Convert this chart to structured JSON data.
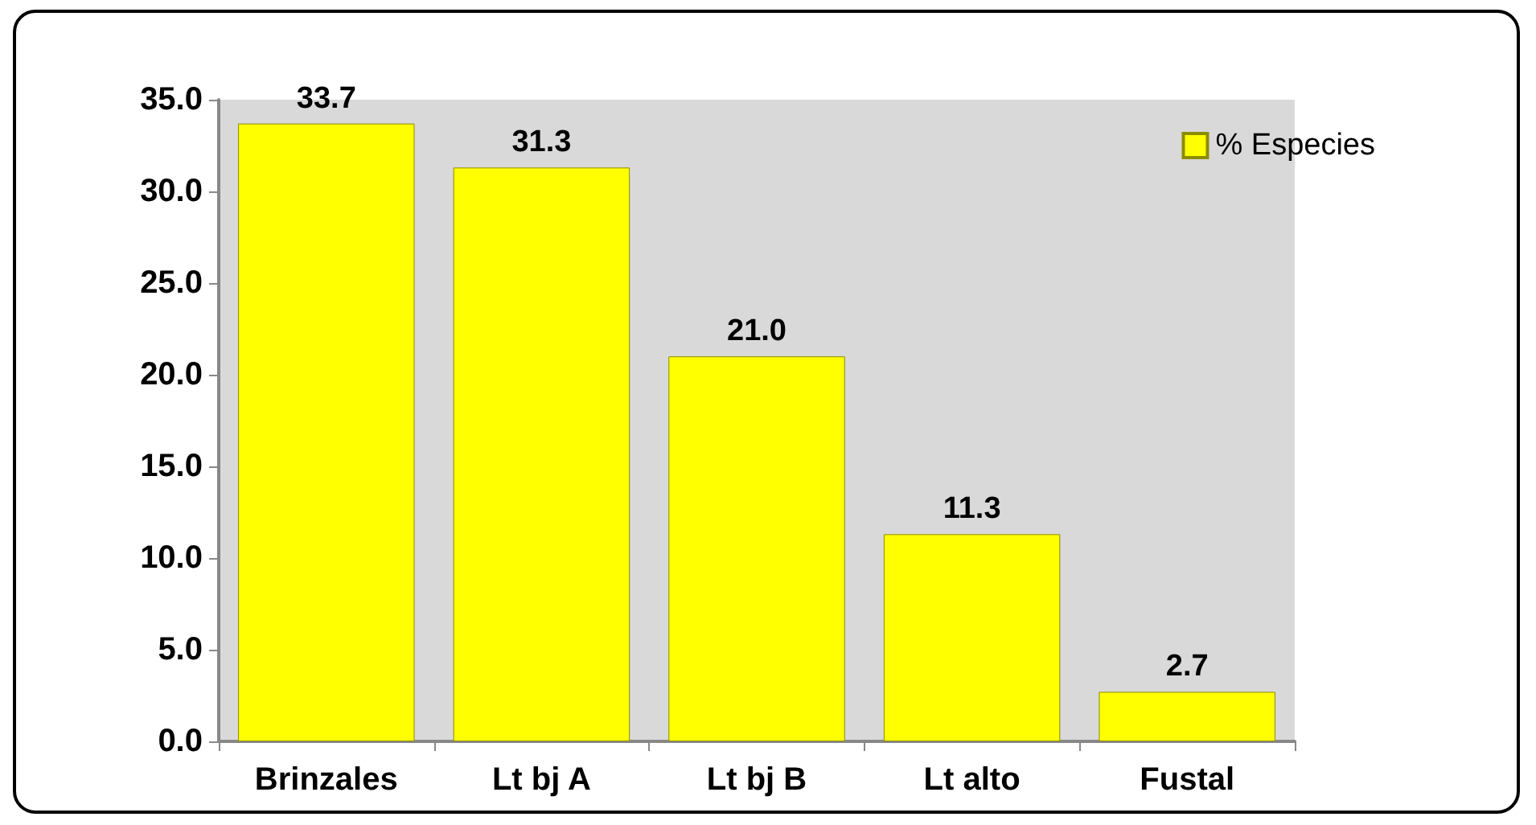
{
  "chart_data": {
    "type": "bar",
    "categories": [
      "Brinzales",
      "Lt bj A",
      "Lt bj B",
      "Lt alto",
      "Fustal"
    ],
    "series": [
      {
        "name": "% Especies",
        "color": "#ffff00",
        "values": [
          33.7,
          31.3,
          21.0,
          11.3,
          2.7
        ],
        "value_labels": [
          "33.7",
          "31.3",
          "21.0",
          "11.3",
          "2.7"
        ]
      }
    ],
    "ylim": [
      0,
      35
    ],
    "yticks": [
      {
        "value": 0,
        "label": "0.0"
      },
      {
        "value": 5,
        "label": "5.0"
      },
      {
        "value": 10,
        "label": "10.0"
      },
      {
        "value": 15,
        "label": "15.0"
      },
      {
        "value": 20,
        "label": "20.0"
      },
      {
        "value": 25,
        "label": "25.0"
      },
      {
        "value": 30,
        "label": "30.0"
      },
      {
        "value": 35,
        "label": "35.0"
      }
    ],
    "grid": false,
    "legend": "top right"
  }
}
